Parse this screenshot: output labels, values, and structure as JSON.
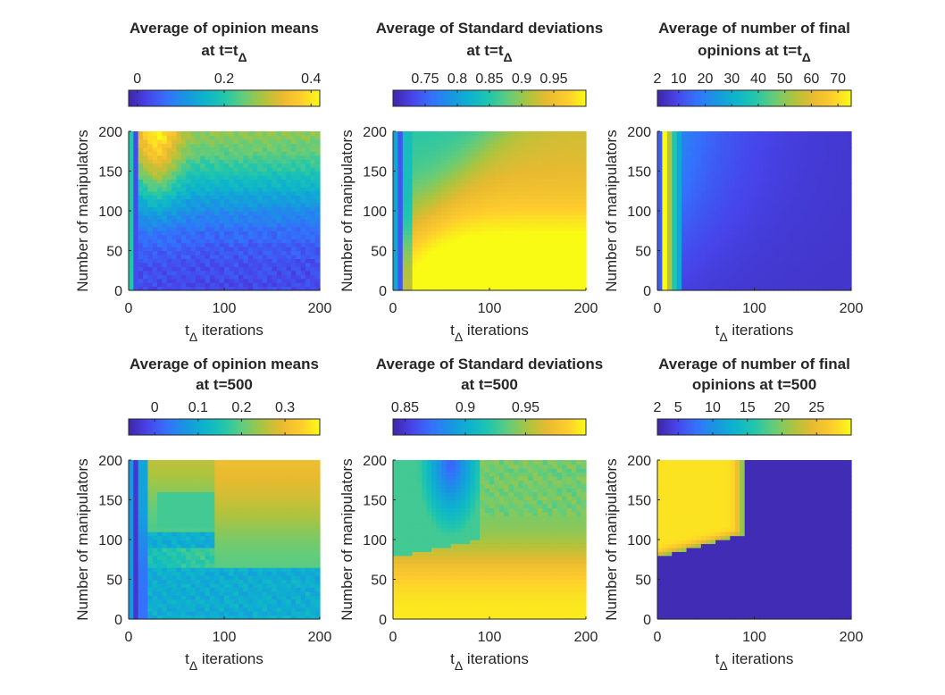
{
  "figure": {
    "xlabel_main": "t",
    "xlabel_sub": "Δ",
    "xlabel_rest": " iterations",
    "ylabel": "Number of manipulators"
  },
  "chart_data": [
    {
      "type": "heatmap",
      "title_line1": "Average of opinion means",
      "title_line2_main": "at t=t",
      "title_line2_sub": "Δ",
      "x_range": [
        0,
        200
      ],
      "y_range": [
        0,
        200
      ],
      "x_ticks": [
        0,
        100,
        200
      ],
      "y_ticks": [
        0,
        50,
        100,
        150,
        200
      ],
      "x_tick_labels": [
        "0",
        "100",
        "200"
      ],
      "y_tick_labels": [
        "0",
        "50",
        "100",
        "150",
        "200"
      ],
      "colorbar": {
        "range": [
          -0.02,
          0.42
        ],
        "ticks": [
          0,
          0.2,
          0.4
        ],
        "tick_labels": [
          "0",
          "0.2",
          "0.4"
        ]
      },
      "colormap": "parula"
    },
    {
      "type": "heatmap",
      "title_line1": "Average of Standard deviations",
      "title_line2_main": "at t=t",
      "title_line2_sub": "Δ",
      "x_range": [
        0,
        200
      ],
      "y_range": [
        0,
        200
      ],
      "x_ticks": [
        0,
        100,
        200
      ],
      "y_ticks": [
        0,
        50,
        100,
        150,
        200
      ],
      "x_tick_labels": [
        "0",
        "100",
        "200"
      ],
      "y_tick_labels": [
        "0",
        "50",
        "100",
        "150",
        "200"
      ],
      "colorbar": {
        "range": [
          0.7,
          1.0
        ],
        "ticks": [
          0.75,
          0.8,
          0.85,
          0.9,
          0.95
        ],
        "tick_labels": [
          "0.75",
          "0.8",
          "0.85",
          "0.9",
          "0.95"
        ]
      },
      "colormap": "parula"
    },
    {
      "type": "heatmap",
      "title_line1": "Average of number of final",
      "title_line2_main": "opinions at t=t",
      "title_line2_sub": "Δ",
      "x_range": [
        0,
        200
      ],
      "y_range": [
        0,
        200
      ],
      "x_ticks": [
        0,
        100,
        200
      ],
      "y_ticks": [
        0,
        50,
        100,
        150,
        200
      ],
      "x_tick_labels": [
        "0",
        "100",
        "200"
      ],
      "y_tick_labels": [
        "0",
        "50",
        "100",
        "150",
        "200"
      ],
      "colorbar": {
        "range": [
          2,
          75
        ],
        "ticks": [
          2,
          10,
          20,
          30,
          40,
          50,
          60,
          70
        ],
        "tick_labels": [
          "2",
          "10",
          "20",
          "30",
          "40",
          "50",
          "60",
          "70"
        ]
      },
      "colormap": "parula"
    },
    {
      "type": "heatmap",
      "title_line1": "Average of opinion means",
      "title_line2_main": "at t=500",
      "title_line2_sub": "",
      "x_range": [
        0,
        200
      ],
      "y_range": [
        0,
        200
      ],
      "x_ticks": [
        0,
        100,
        200
      ],
      "y_ticks": [
        0,
        50,
        100,
        150,
        200
      ],
      "x_tick_labels": [
        "0",
        "100",
        "200"
      ],
      "y_tick_labels": [
        "0",
        "50",
        "100",
        "150",
        "200"
      ],
      "colorbar": {
        "range": [
          -0.06,
          0.38
        ],
        "ticks": [
          0,
          0.1,
          0.2,
          0.3
        ],
        "tick_labels": [
          "0",
          "0.1",
          "0.2",
          "0.3"
        ]
      },
      "colormap": "parula"
    },
    {
      "type": "heatmap",
      "title_line1": "Average of Standard deviations",
      "title_line2_main": "at t=500",
      "title_line2_sub": "",
      "x_range": [
        0,
        200
      ],
      "y_range": [
        0,
        200
      ],
      "x_ticks": [
        0,
        100,
        200
      ],
      "y_ticks": [
        0,
        50,
        100,
        150,
        200
      ],
      "x_tick_labels": [
        "0",
        "100",
        "200"
      ],
      "y_tick_labels": [
        "0",
        "50",
        "100",
        "150",
        "200"
      ],
      "colorbar": {
        "range": [
          0.84,
          1.0
        ],
        "ticks": [
          0.85,
          0.9,
          0.95
        ],
        "tick_labels": [
          "0.85",
          "0.9",
          "0.95"
        ]
      },
      "colormap": "parula"
    },
    {
      "type": "heatmap",
      "title_line1": "Average of number of final",
      "title_line2_main": "opinions at t=500",
      "title_line2_sub": "",
      "x_range": [
        0,
        200
      ],
      "y_range": [
        0,
        200
      ],
      "x_ticks": [
        0,
        100,
        200
      ],
      "y_ticks": [
        0,
        50,
        100,
        150,
        200
      ],
      "x_tick_labels": [
        "0",
        "100",
        "200"
      ],
      "y_tick_labels": [
        "0",
        "50",
        "100",
        "150",
        "200"
      ],
      "colorbar": {
        "range": [
          2,
          30
        ],
        "ticks": [
          2,
          5,
          10,
          15,
          20,
          25
        ],
        "tick_labels": [
          "2",
          "5",
          "10",
          "15",
          "20",
          "25"
        ]
      },
      "colormap": "parula"
    }
  ]
}
